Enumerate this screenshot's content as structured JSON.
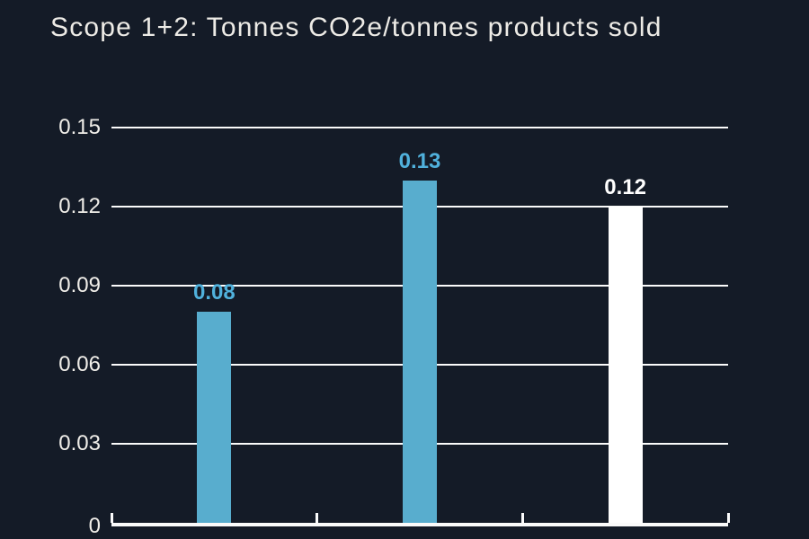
{
  "chart_data": {
    "type": "bar",
    "title": "Scope 1+2: Tonnes CO2e/tonnes products sold",
    "xlabel": "",
    "ylabel": "",
    "ylim": [
      0,
      0.15
    ],
    "grid": true,
    "legend": false,
    "y_ticks": [
      {
        "value": 0,
        "label": "0"
      },
      {
        "value": 0.03,
        "label": "0.03"
      },
      {
        "value": 0.06,
        "label": "0.06"
      },
      {
        "value": 0.09,
        "label": "0.09"
      },
      {
        "value": 0.12,
        "label": "0.12"
      },
      {
        "value": 0.15,
        "label": "0.15"
      }
    ],
    "bars": [
      {
        "value": 0.08,
        "label": "0.08",
        "bar_color": "#58adce",
        "label_color": "#50b1dc"
      },
      {
        "value": 0.13,
        "label": "0.13",
        "bar_color": "#58adce",
        "label_color": "#50b1dc"
      },
      {
        "value": 0.12,
        "label": "0.12",
        "bar_color": "#ffffff",
        "label_color": "#ffffff"
      }
    ]
  },
  "colors": {
    "background": "#141b27",
    "gridline": "#fbfbfb",
    "axis": "#fbfbfb",
    "title_text": "#edebe6",
    "tick_text": "#f0eee9"
  }
}
